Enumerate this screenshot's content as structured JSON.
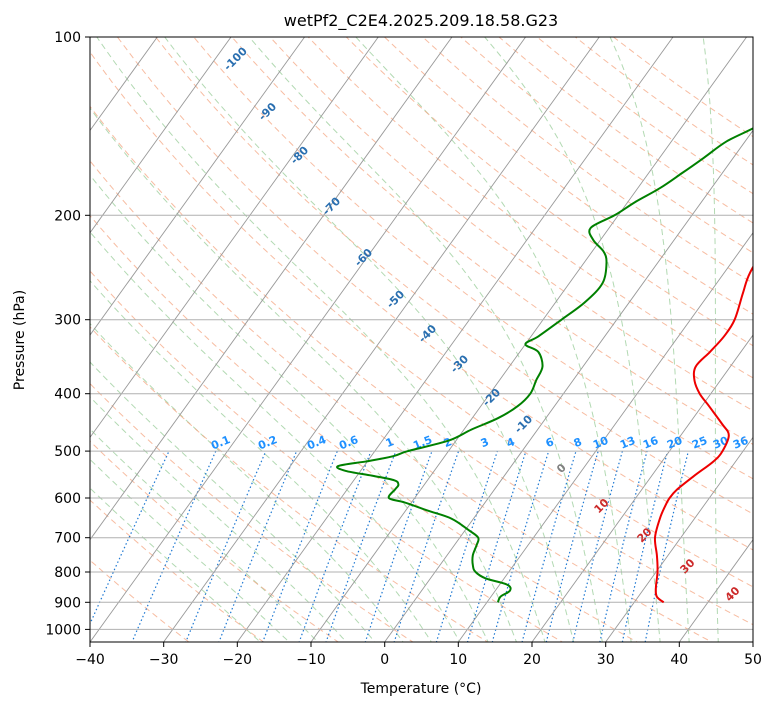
{
  "chart_data": {
    "type": "line",
    "title": "wetPf2_C2E4.2025.209.18.58.G23",
    "xlabel": "Temperature (°C)",
    "ylabel": "Pressure (hPa)",
    "xlim": [
      -40,
      50
    ],
    "ylim": [
      1050,
      100
    ],
    "y_scale": "log",
    "grid": true,
    "x_ticks": [
      -40,
      -30,
      -20,
      -10,
      0,
      10,
      20,
      30,
      40,
      50
    ],
    "x_tick_labels": [
      "−40",
      "−30",
      "−20",
      "−10",
      "0",
      "10",
      "20",
      "30",
      "40",
      "50"
    ],
    "y_ticks": [
      1000,
      900,
      800,
      700,
      600,
      500,
      400,
      300,
      200,
      100
    ],
    "y_tick_labels": [
      "1000",
      "900",
      "800",
      "700",
      "600",
      "500",
      "400",
      "300",
      "200",
      "100"
    ],
    "series": [
      {
        "color": "#ee0000",
        "pressure": [
          900,
          880,
          850,
          800,
          750,
          700,
          650,
          620,
          600,
          580,
          550,
          520,
          500,
          470,
          450,
          420,
          400,
          380,
          360,
          340,
          320,
          300,
          270,
          250,
          220,
          200,
          180,
          160,
          140,
          130,
          120,
          110,
          100
        ],
        "temperature": [
          34,
          32.5,
          31.5,
          30.2,
          28.5,
          26.5,
          25.3,
          24.8,
          24.6,
          24.8,
          25.8,
          27.0,
          27.2,
          26.5,
          24.5,
          21.0,
          18.5,
          16.5,
          15.3,
          15.8,
          16.2,
          16.0,
          14.5,
          13.5,
          12.8,
          11.5,
          9.5,
          7.5,
          6.5,
          6.5,
          6.6,
          6.7,
          7.0
        ]
      },
      {
        "color": "#008000",
        "pressure": [
          900,
          880,
          860,
          840,
          820,
          800,
          780,
          750,
          720,
          700,
          680,
          650,
          630,
          610,
          600,
          580,
          570,
          560,
          550,
          540,
          530,
          520,
          510,
          500,
          480,
          460,
          440,
          420,
          400,
          380,
          360,
          340,
          330,
          320,
          300,
          280,
          260,
          240,
          230,
          220,
          210,
          200,
          190,
          180,
          170,
          160,
          150,
          140,
          130,
          120,
          110,
          100
        ],
        "temperature": [
          11.5,
          11.3,
          12.0,
          11.0,
          7.5,
          5.5,
          4.5,
          3.5,
          3.0,
          2.5,
          0.5,
          -3.0,
          -7.0,
          -11.0,
          -13.5,
          -13.5,
          -13.5,
          -14.5,
          -18.0,
          -22.0,
          -23.5,
          -20.0,
          -17.0,
          -15.5,
          -11.0,
          -9.0,
          -6.5,
          -5.0,
          -4.5,
          -5.0,
          -5.5,
          -7.5,
          -10.0,
          -9.0,
          -7.5,
          -6.0,
          -5.5,
          -7.0,
          -8.5,
          -11.0,
          -12.5,
          -10.5,
          -9.0,
          -7.0,
          -5.5,
          -4.0,
          -2.5,
          0.5,
          1.5,
          1.5,
          1.3,
          2.5
        ]
      }
    ],
    "dry_adiabat_labels": [
      "-100",
      "-90",
      "-80",
      "-70",
      "-60",
      "-50",
      "-40",
      "-30",
      "-20",
      "-10",
      "0",
      "10",
      "20",
      "30",
      "40"
    ],
    "mixing_ratio_labels": [
      "0.1",
      "0.2",
      "0.4",
      "0.6",
      "1",
      "1.5",
      "2",
      "3",
      "4",
      "6",
      "8",
      "10",
      "13",
      "16",
      "20",
      "25",
      "30",
      "36"
    ]
  }
}
